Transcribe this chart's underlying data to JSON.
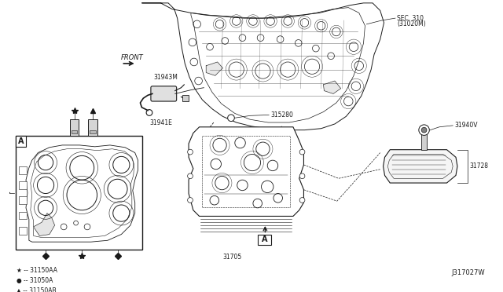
{
  "background_color": "#ffffff",
  "line_color": "#1a1a1a",
  "text_color": "#1a1a1a",
  "fig_width": 6.4,
  "fig_height": 3.72,
  "dpi": 100,
  "labels": {
    "front": "FRONT",
    "sec310": "SEC. 310",
    "sec310b": "(31020M)",
    "part_31943M": "31943M",
    "part_31941E": "31941E",
    "part_315280": "315280",
    "part_31705": "31705",
    "part_31940V": "31940V",
    "part_31728": "31728",
    "legend_star": "★ -- 31150AA",
    "legend_diamond": "● -- 31050A",
    "legend_triangle": "▲ -- 31150AB",
    "watermark": "J317027W",
    "box_A": "A"
  },
  "font_size_small": 5.5,
  "font_size_mid": 6.0,
  "font_size_box": 7
}
